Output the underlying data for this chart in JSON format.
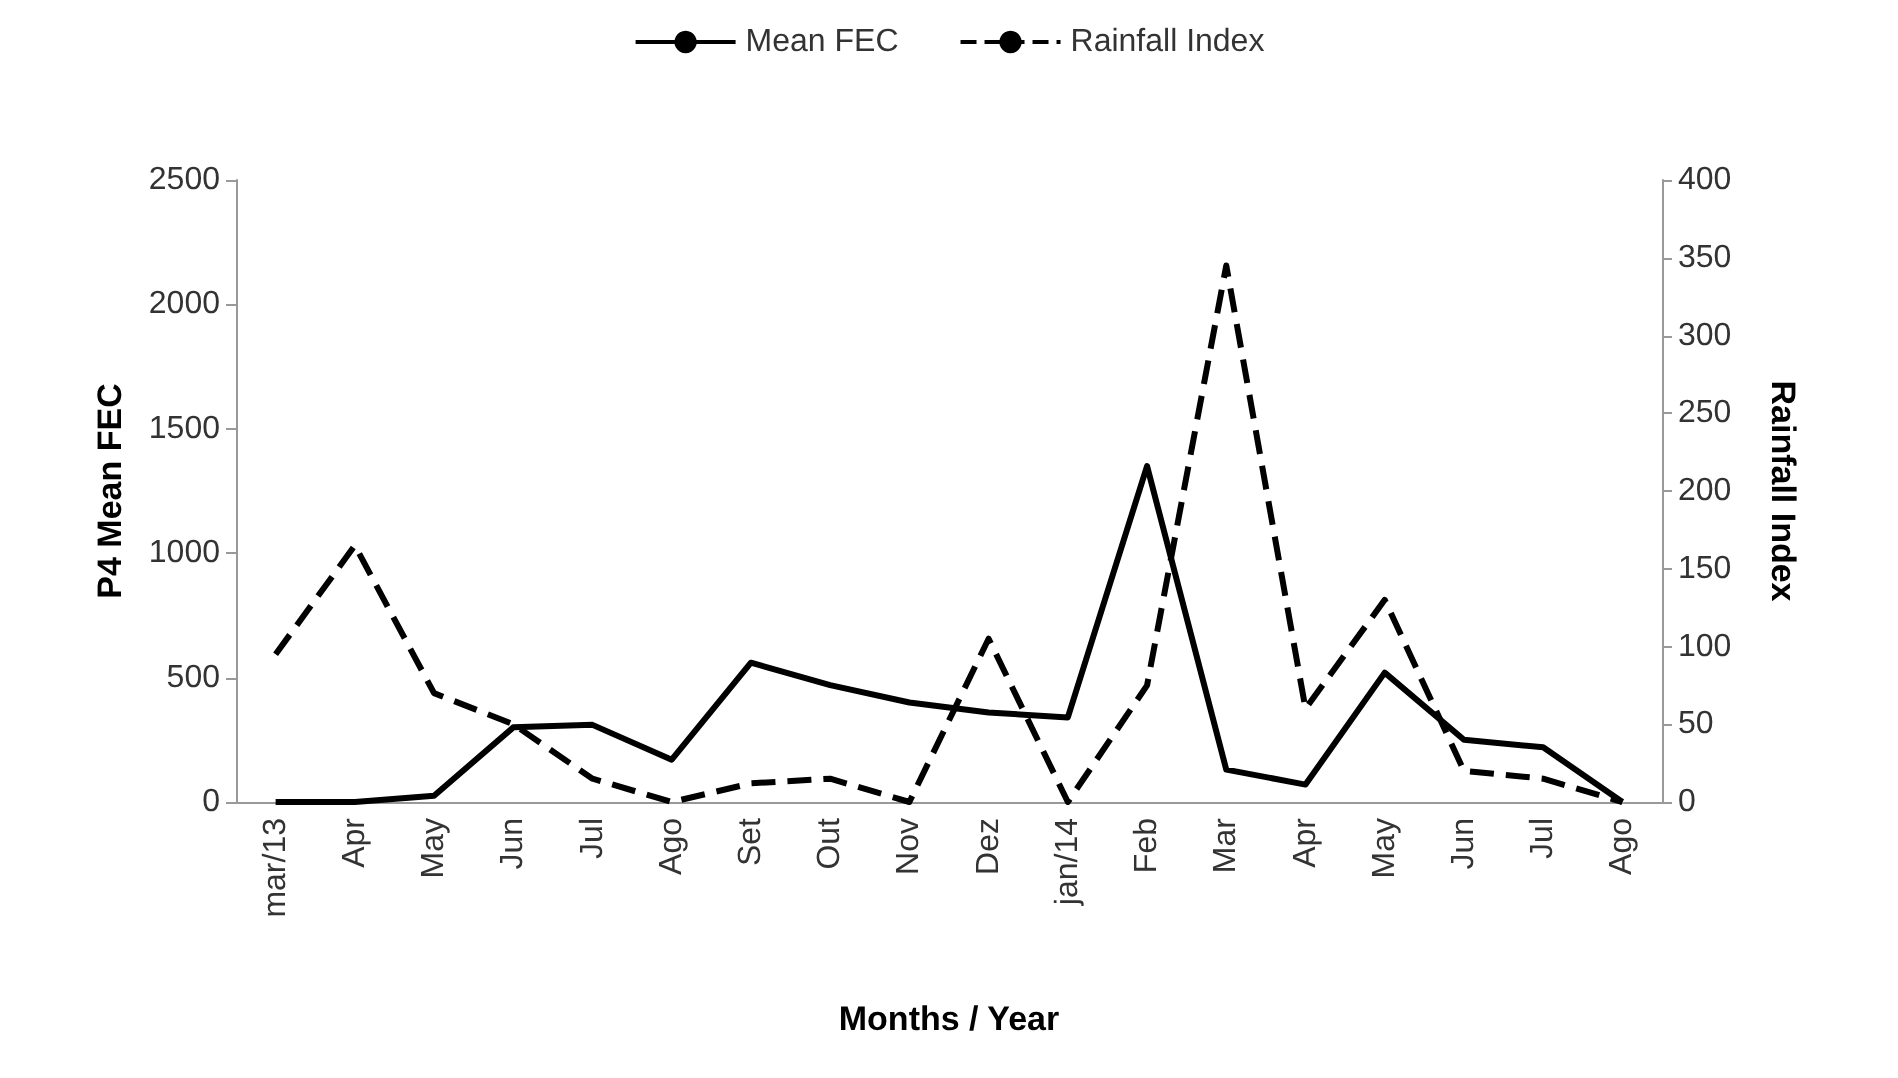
{
  "chart_data": {
    "type": "line",
    "xlabel": "Months / Year",
    "ylabel": "P4 Mean FEC",
    "y2label": "Rainfall Index",
    "categories": [
      "mar/13",
      "Apr",
      "May",
      "Jun",
      "Jul",
      "Ago",
      "Set",
      "Out",
      "Nov",
      "Dez",
      "jan/14",
      "Feb",
      "Mar",
      "Apr",
      "May",
      "Jun",
      "Jul",
      "Ago"
    ],
    "series": [
      {
        "name": "Mean FEC",
        "color": "#000000",
        "line_style": "solid",
        "values": [
          0,
          0,
          25,
          300,
          310,
          170,
          560,
          470,
          400,
          360,
          340,
          1350,
          130,
          70,
          520,
          250,
          220,
          0
        ]
      },
      {
        "name": "Rainfall Index",
        "color": "#000000",
        "line_style": "dashed",
        "axis": "y2",
        "values": [
          95,
          165,
          70,
          50,
          15,
          0,
          12,
          15,
          0,
          105,
          0,
          75,
          345,
          60,
          130,
          20,
          15,
          0
        ]
      }
    ],
    "ylim": [
      0,
      2500
    ],
    "yticks": [
      0,
      500,
      1000,
      1500,
      2000,
      2500
    ],
    "y2lim": [
      0,
      400
    ],
    "y2ticks": [
      0,
      50,
      100,
      150,
      200,
      250,
      300,
      350,
      400
    ],
    "grid": false,
    "legend": "top",
    "marker": "none"
  }
}
